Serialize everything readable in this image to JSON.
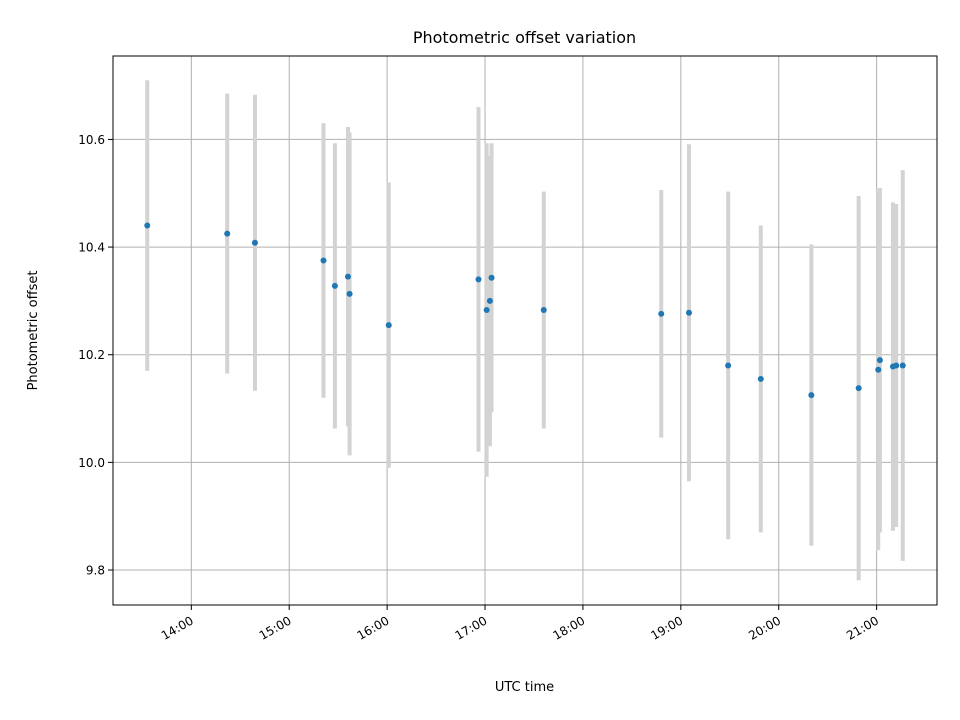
{
  "chart_data": {
    "type": "scatter",
    "title": "Photometric offset variation",
    "xlabel": "UTC time",
    "ylabel": "Photometric offset",
    "x_ticks": [
      "14:00",
      "15:00",
      "16:00",
      "17:00",
      "18:00",
      "19:00",
      "20:00",
      "21:00"
    ],
    "y_ticks": [
      "9.8",
      "10.0",
      "10.2",
      "10.4",
      "10.6"
    ],
    "xlim": [
      "13:12",
      "21:37"
    ],
    "ylim": [
      9.735,
      10.755
    ],
    "grid": true,
    "colors": {
      "point": "#1f77b4",
      "errorbar": "#d3d3d3",
      "grid": "#b0b0b0"
    },
    "points": [
      {
        "t": "13:33",
        "y": 10.44,
        "err": 0.27
      },
      {
        "t": "14:22",
        "y": 10.425,
        "err": 0.26
      },
      {
        "t": "14:39",
        "y": 10.408,
        "err": 0.275
      },
      {
        "t": "15:21",
        "y": 10.375,
        "err": 0.255
      },
      {
        "t": "15:28",
        "y": 10.328,
        "err": 0.265
      },
      {
        "t": "15:36",
        "y": 10.345,
        "err": 0.278
      },
      {
        "t": "15:37",
        "y": 10.313,
        "err": 0.3
      },
      {
        "t": "16:01",
        "y": 10.255,
        "err": 0.265
      },
      {
        "t": "16:56",
        "y": 10.34,
        "err": 0.32
      },
      {
        "t": "17:01",
        "y": 10.283,
        "err": 0.31
      },
      {
        "t": "17:03",
        "y": 10.3,
        "err": 0.27
      },
      {
        "t": "17:04",
        "y": 10.343,
        "err": 0.25
      },
      {
        "t": "17:36",
        "y": 10.283,
        "err": 0.22
      },
      {
        "t": "18:48",
        "y": 10.276,
        "err": 0.23
      },
      {
        "t": "19:05",
        "y": 10.278,
        "err": 0.313
      },
      {
        "t": "19:29",
        "y": 10.18,
        "err": 0.323
      },
      {
        "t": "19:49",
        "y": 10.155,
        "err": 0.285
      },
      {
        "t": "20:20",
        "y": 10.125,
        "err": 0.28
      },
      {
        "t": "20:49",
        "y": 10.138,
        "err": 0.357
      },
      {
        "t": "21:01",
        "y": 10.172,
        "err": 0.335
      },
      {
        "t": "21:02",
        "y": 10.19,
        "err": 0.32
      },
      {
        "t": "21:10",
        "y": 10.178,
        "err": 0.305
      },
      {
        "t": "21:12",
        "y": 10.18,
        "err": 0.3
      },
      {
        "t": "21:16",
        "y": 10.18,
        "err": 0.363
      }
    ]
  }
}
